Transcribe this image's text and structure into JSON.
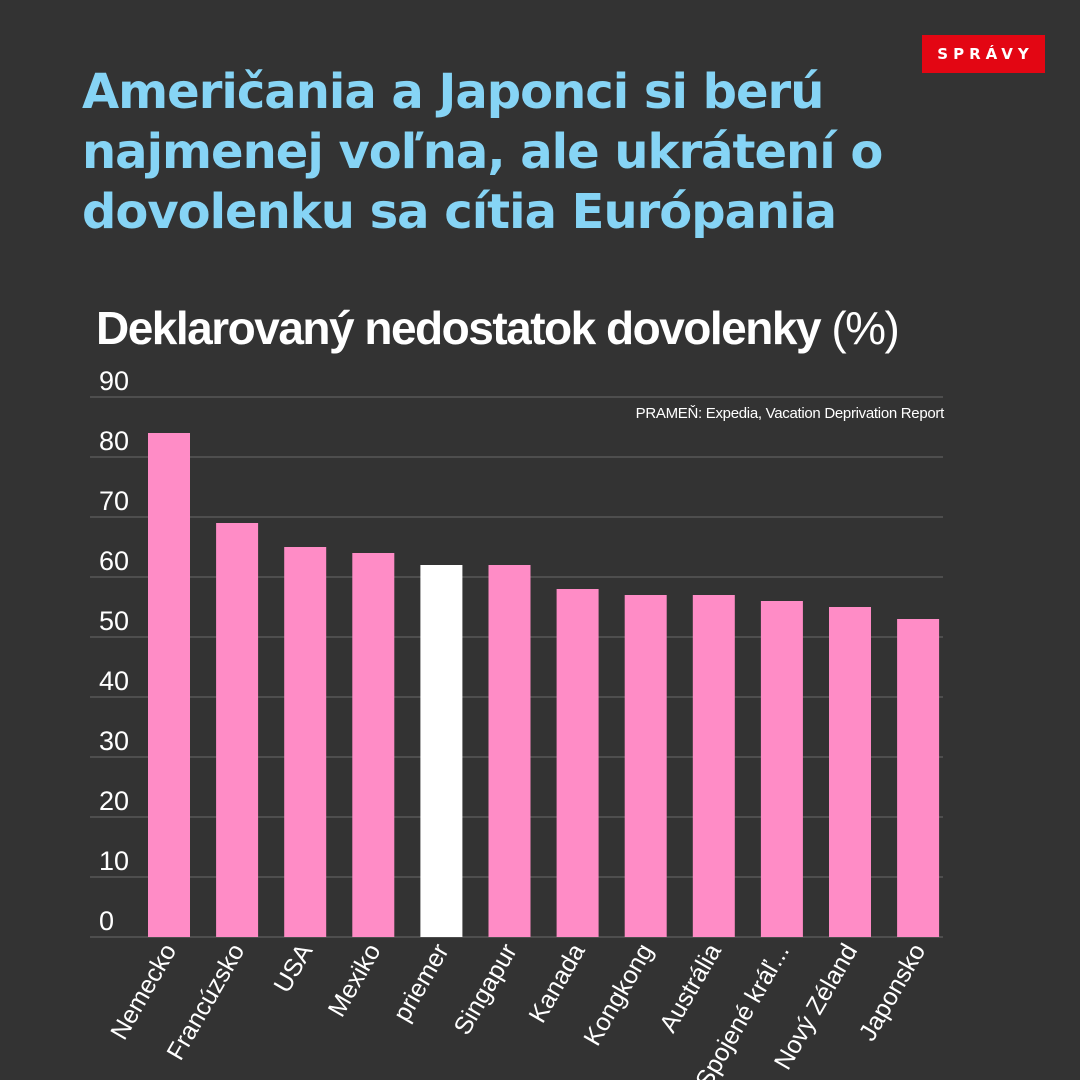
{
  "badge": {
    "label": "SPRÁVY",
    "color": "#e30613"
  },
  "headline": "Američania a Japonci si berú najmenej voľna, ale ukrátení o dovolenku sa cítia Európania",
  "chart_data": {
    "type": "bar",
    "title": "Deklarovaný nedostatok dovolenky",
    "title_unit": "(%)",
    "source": "PRAMEŇ: Expedia, Vacation Deprivation Report",
    "xlabel": "",
    "ylabel": "",
    "ylim": [
      0,
      90
    ],
    "yticks": [
      0,
      10,
      20,
      30,
      40,
      50,
      60,
      70,
      80,
      90
    ],
    "grid": true,
    "categories": [
      "Nemecko",
      "Francúzsko",
      "USA",
      "Mexiko",
      "priemer",
      "Singapur",
      "Kanada",
      "Kongkong",
      "Austrália",
      "Spojené kráľ...",
      "Nový Zéland",
      "Japonsko"
    ],
    "values": [
      84,
      69,
      65,
      64,
      62,
      62,
      58,
      57,
      57,
      56,
      55,
      53
    ],
    "highlight_index": 4,
    "colors": {
      "bar": "#ff8cc6",
      "highlight": "#ffffff",
      "grid": "#6a6a6a",
      "text": "#ffffff"
    }
  }
}
